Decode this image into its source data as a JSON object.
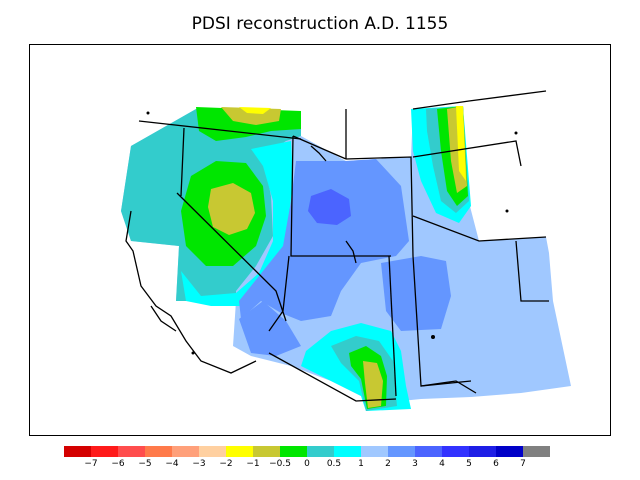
{
  "title": "PDSI reconstruction A.D. 1155",
  "colors": {
    "c_le_m7": "#d40000",
    "c_m7_m6": "#ff1a1a",
    "c_m6_m5": "#ff4d4d",
    "c_m5_m4": "#ff7a4a",
    "c_m4_m3": "#ffa07a",
    "c_m3_m2": "#ffd0a0",
    "c_m2_m1": "#ffff00",
    "c_m1_m05": "#c8c832",
    "c_m05_0": "#00e600",
    "c_0_05": "#33cccc",
    "c_05_1": "#00ffff",
    "c_1_2": "#a0c8ff",
    "c_2_3": "#6496ff",
    "c_3_4": "#4b64ff",
    "c_4_5": "#3232ff",
    "c_5_6": "#1e1ee6",
    "c_6_7": "#0000c8",
    "c_ge_7": "#808080"
  },
  "colorbar": {
    "colors": [
      "#d40000",
      "#ff1a1a",
      "#ff4d4d",
      "#ff7a4a",
      "#ffa07a",
      "#ffd0a0",
      "#ffff00",
      "#c8c832",
      "#00e600",
      "#33cccc",
      "#00ffff",
      "#a0c8ff",
      "#6496ff",
      "#4b64ff",
      "#3232ff",
      "#1e1ee6",
      "#0000c8",
      "#808080"
    ],
    "labels": [
      "−7",
      "−6",
      "−5",
      "−4",
      "−3",
      "−2",
      "−1",
      "−0.5",
      "0",
      "0.5",
      "1",
      "2",
      "3",
      "4",
      "5",
      "6",
      "7"
    ]
  }
}
